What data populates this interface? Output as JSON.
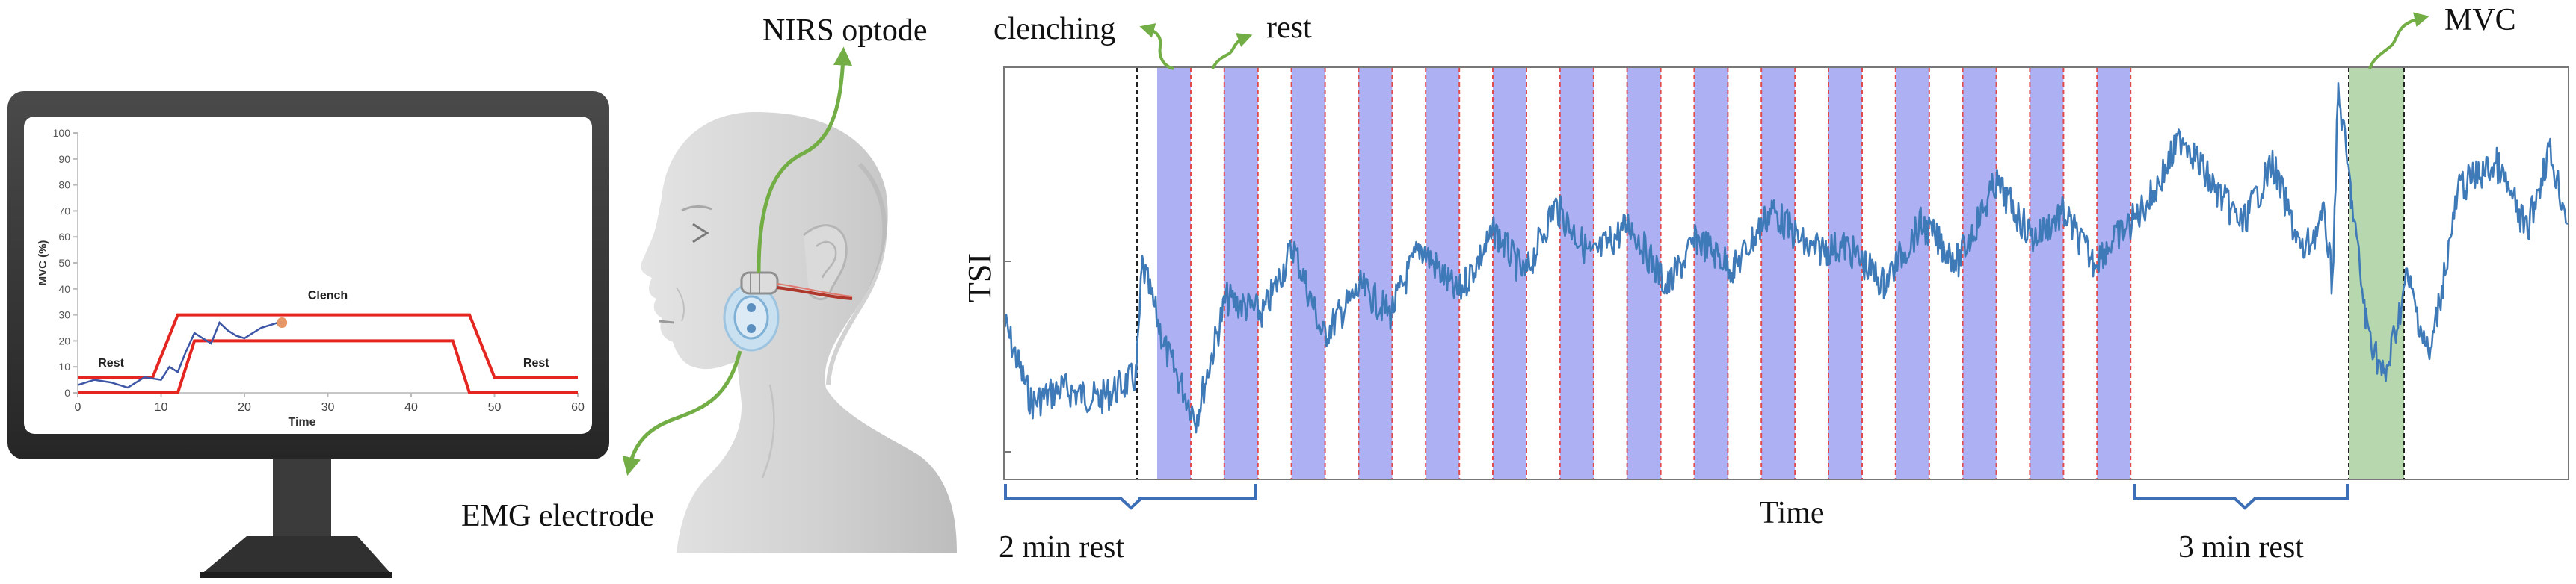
{
  "labels": {
    "nirs_optode": "NIRS optode",
    "emg_electrode": "EMG electrode",
    "clenching": "clenching",
    "rest": "rest",
    "mvc": "MVC",
    "tsi_axis": "TSI",
    "time_axis": "Time",
    "rest_2min": "2 min rest",
    "rest_3min": "3 min rest"
  },
  "colors": {
    "clench_band": "#aeb0f4",
    "mvc_band": "#b7d7ae",
    "signal": "#3f7ab8",
    "arrow": "#72ad45",
    "target_line": "#e52620",
    "brace": "#3d6fb6"
  },
  "monitor_chart": {
    "type": "line",
    "ylabel": "MVC (%)",
    "xlabel": "Time",
    "xlim": [
      0,
      60
    ],
    "ylim": [
      0,
      100
    ],
    "xticks": [
      "0",
      "10",
      "20",
      "30",
      "40",
      "50",
      "60"
    ],
    "yticks": [
      "0",
      "10",
      "20",
      "30",
      "40",
      "50",
      "60",
      "70",
      "80",
      "90",
      "100"
    ],
    "annotations": {
      "rest_left": "Rest",
      "clench": "Clench",
      "rest_right": "Rest"
    },
    "series": [
      {
        "x": [
          0,
          9,
          12,
          47,
          50,
          60
        ],
        "y": [
          6,
          6,
          30,
          30,
          6,
          6
        ]
      },
      {
        "x": [
          0,
          12,
          14,
          45,
          47,
          60
        ],
        "y": [
          0,
          0,
          20,
          20,
          0,
          0
        ]
      },
      {
        "x": [
          0,
          2,
          4,
          6,
          8,
          10,
          11,
          12,
          13,
          14,
          15,
          16,
          17,
          18,
          19,
          20,
          21,
          22,
          23,
          24
        ],
        "y": [
          3,
          5,
          4,
          2,
          6,
          5,
          10,
          8,
          16,
          23,
          21,
          19,
          27,
          24,
          22,
          21,
          23,
          25,
          26,
          27
        ]
      }
    ],
    "marker": {
      "x": 24.5,
      "y": 27
    }
  },
  "tsi_chart": {
    "type": "line",
    "xlabel": "Time",
    "ylabel": "TSI",
    "grid": false,
    "n_clench_blocks": 15
  }
}
